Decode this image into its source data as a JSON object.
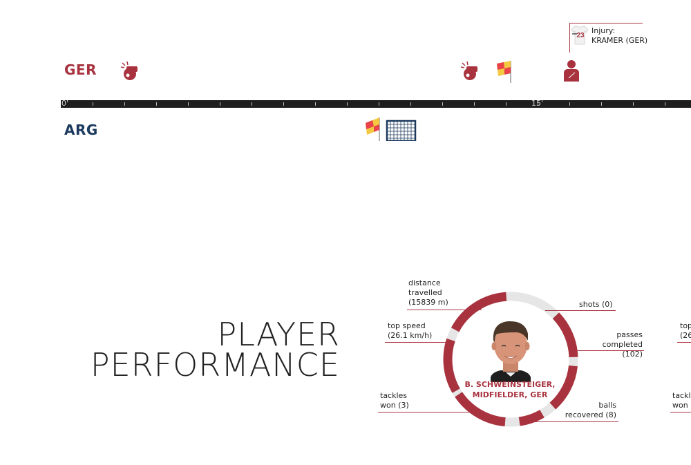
{
  "timeline": {
    "teams": {
      "home": "GER",
      "away": "ARG"
    },
    "tick_labels": [
      "0'",
      "15'"
    ],
    "events": [
      {
        "team": "GER",
        "type": "whistle",
        "icon": "whistle-icon"
      },
      {
        "team": "GER",
        "type": "whistle",
        "icon": "whistle-icon"
      },
      {
        "team": "GER",
        "type": "offside",
        "icon": "corner-flag-icon"
      },
      {
        "team": "GER",
        "type": "substitution",
        "icon": "player-icon"
      },
      {
        "team": "ARG",
        "type": "offside",
        "icon": "corner-flag-icon"
      },
      {
        "team": "ARG",
        "type": "goal-attempt",
        "icon": "goal-net-icon"
      }
    ],
    "injury": {
      "number": "23",
      "line1": "Injury:",
      "line2": "KRAMER (GER)"
    }
  },
  "performance": {
    "title_line1": "PLAYER",
    "title_line2": "PERFORMANCE",
    "player": {
      "name_line1": "B. SCHWEINSTEIGER,",
      "name_line2": "MIDFIELDER, GER"
    },
    "stats": {
      "distance": {
        "line1": "distance",
        "line2": "travelled",
        "line3": "(15839 m)"
      },
      "top_speed": {
        "line1": "top speed",
        "line2": "(26.1 km/h)"
      },
      "tackles": {
        "line1": "tackles",
        "line2": "won (3)"
      },
      "shots": {
        "line1": "shots (0)"
      },
      "passes": {
        "line1": "passes",
        "line2": "completed (102)"
      },
      "balls": {
        "line1": "balls",
        "line2": "recovered (8)"
      }
    },
    "partial_right": {
      "speed_line1": "top",
      "speed_line2": "(26",
      "tackles_line1": "tackl",
      "tackles_line2": "won"
    }
  },
  "colors": {
    "ger": "#a8333f",
    "arg": "#1c3a5e",
    "ring_bg": "#e6e6e6"
  }
}
